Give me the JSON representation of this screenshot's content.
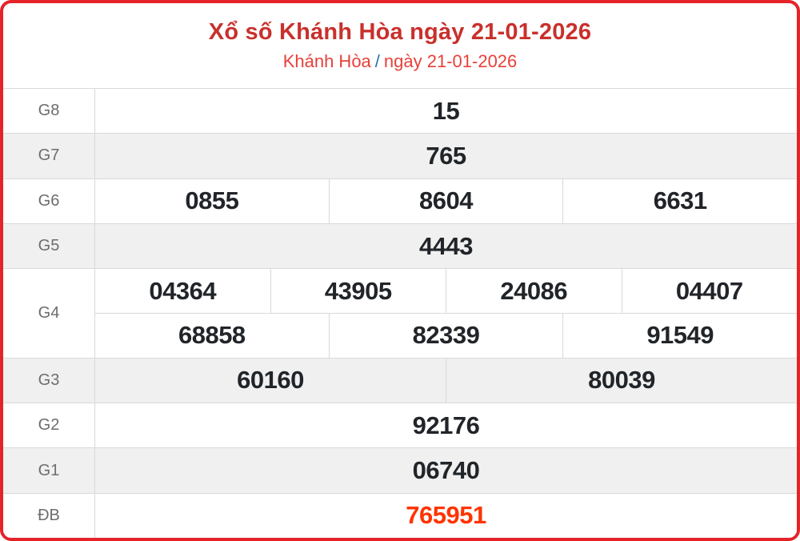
{
  "header": {
    "title": "Xổ số Khánh Hòa ngày 21-01-2026",
    "breadcrumb": {
      "province": "Khánh Hòa",
      "separator": "/",
      "date": "ngày 21-01-2026"
    }
  },
  "colors": {
    "card_border": "#e52329",
    "title_red": "#c9302c",
    "breadcrumb_red": "#e8403a",
    "breadcrumb_separator_blue": "#2b72a8",
    "special_prize_red": "#ff3300",
    "number_dark": "#212529",
    "label_gray": "#6d6d6d",
    "alt_row_bg": "#f0f0f0",
    "grid_line": "#d9d9d9"
  },
  "results": {
    "rows": [
      {
        "label": "G8",
        "values": [
          "15"
        ]
      },
      {
        "label": "G7",
        "values": [
          "765"
        ]
      },
      {
        "label": "G6",
        "values": [
          "0855",
          "8604",
          "6631"
        ]
      },
      {
        "label": "G5",
        "values": [
          "4443"
        ]
      },
      {
        "label": "G4",
        "values_row1": [
          "04364",
          "43905",
          "24086",
          "04407"
        ],
        "values_row2": [
          "68858",
          "82339",
          "91549"
        ]
      },
      {
        "label": "G3",
        "values": [
          "60160",
          "80039"
        ]
      },
      {
        "label": "G2",
        "values": [
          "92176"
        ]
      },
      {
        "label": "G1",
        "values": [
          "06740"
        ]
      },
      {
        "label": "ĐB",
        "values": [
          "765951"
        ]
      }
    ]
  }
}
